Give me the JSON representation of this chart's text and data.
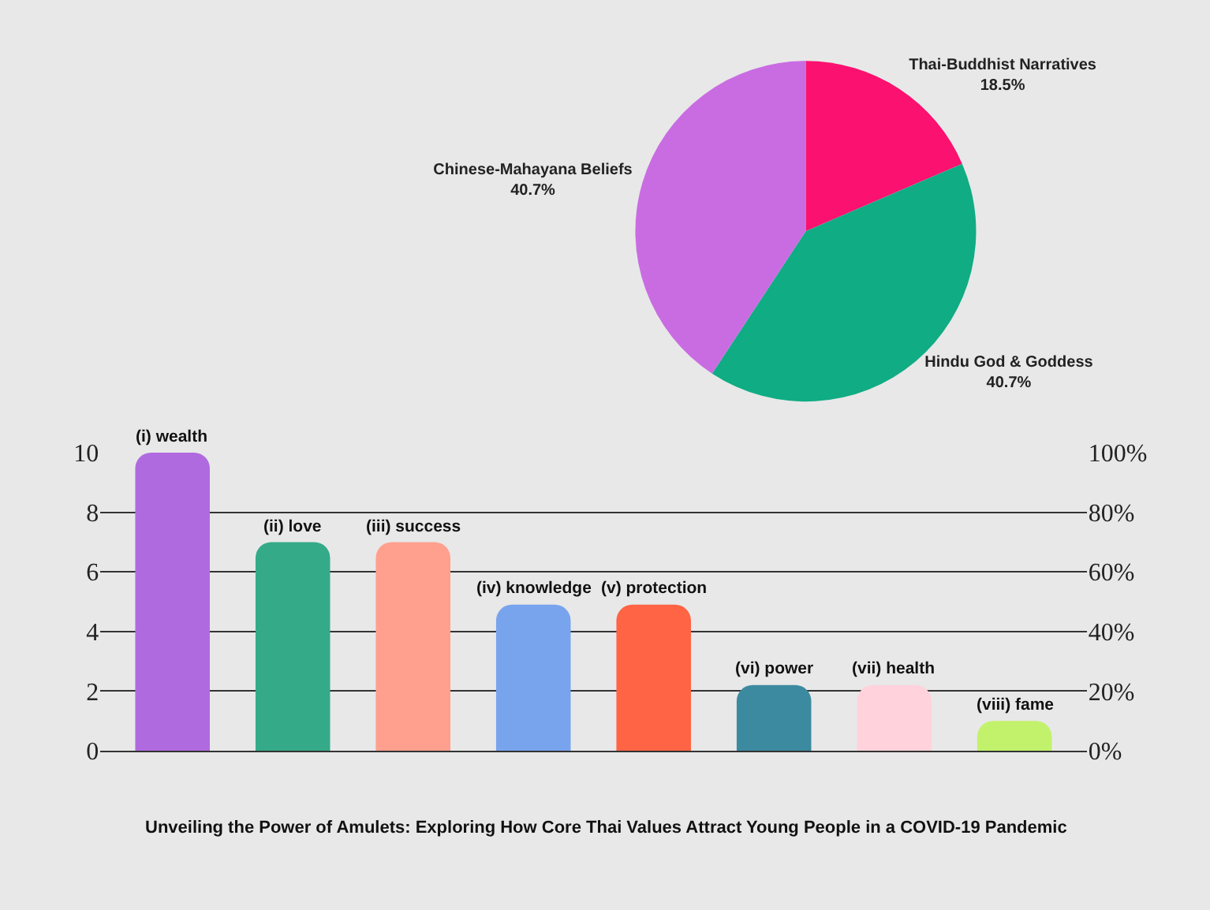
{
  "chart_data": [
    {
      "type": "pie",
      "categories": [
        "Thai-Buddhist Narratives",
        "Hindu God & Goddess",
        "Chinese-Mahayana Beliefs"
      ],
      "values": [
        18.5,
        40.7,
        40.7
      ],
      "colors": [
        "#fb1170",
        "#10ac84",
        "#c96ce2"
      ],
      "value_labels": [
        "18.5%",
        "40.7%",
        "40.7%"
      ]
    },
    {
      "type": "bar",
      "categories": [
        "(i) wealth",
        "(ii) love",
        "(iii) success",
        "(iv) knowledge",
        "(v) protection",
        "(vi) power",
        "(vii) health",
        "(viii) fame"
      ],
      "values": [
        10,
        7,
        7,
        4.9,
        4.9,
        2.2,
        2.2,
        1.0
      ],
      "colors": [
        "#b06ae0",
        "#34aa88",
        "#ffa08e",
        "#78a4ee",
        "#ff6444",
        "#3c8aa0",
        "#ffd2dc",
        "#c2f26c"
      ],
      "ylim": [
        0,
        10
      ],
      "yticks": [
        0,
        2,
        4,
        6,
        8,
        10
      ],
      "y2lim": [
        0,
        100
      ],
      "y2ticks": [
        {
          "value": 0,
          "label": "0%"
        },
        {
          "value": 20,
          "label": "20%"
        },
        {
          "value": 40,
          "label": "40%"
        },
        {
          "value": 60,
          "label": "60%"
        },
        {
          "value": 80,
          "label": "80%"
        },
        {
          "value": 100,
          "label": "100%"
        }
      ],
      "grid": "y",
      "tick_labels": "y",
      "annotations": [
        "Unveiling the Power of Amulets: Exploring How Core Thai Values Attract Young People in a COVID-19 Pandemic"
      ]
    }
  ]
}
